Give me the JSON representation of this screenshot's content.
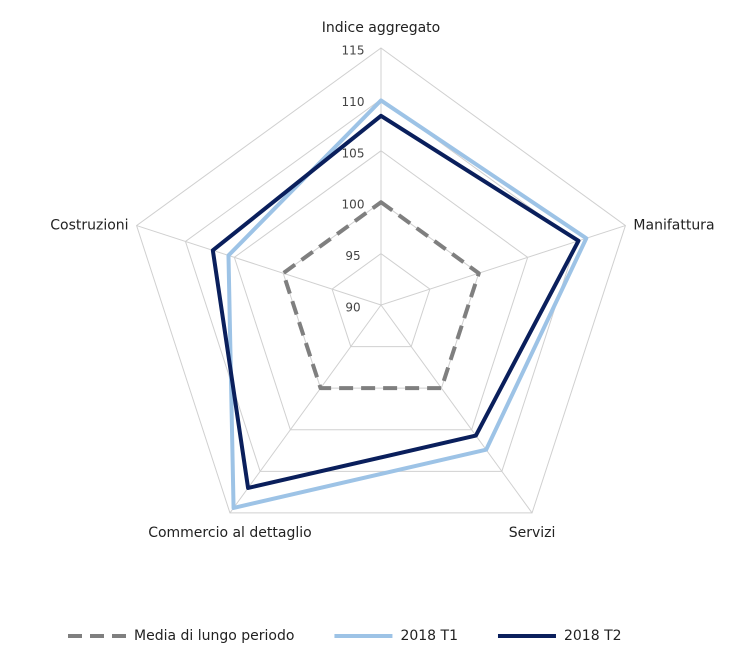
{
  "chart_data": {
    "type": "radar",
    "categories": [
      "Indice aggregato",
      "Manifattura",
      "Servizi",
      "Commercio al dettaglio",
      "Costruzioni"
    ],
    "rlim": [
      90,
      115
    ],
    "rticks": [
      90,
      95,
      100,
      105,
      110,
      115
    ],
    "grid": true,
    "legend": "bottom",
    "series": [
      {
        "name": "Media di lungo periodo",
        "color": "#7f7f7f",
        "dashed": true,
        "values": [
          100,
          100,
          100,
          100,
          100
        ]
      },
      {
        "name": "2018 T1",
        "color": "#9dc3e6",
        "values": [
          109.9,
          111,
          107.4,
          114.4,
          105.6
        ]
      },
      {
        "name": "2018 T2",
        "color": "#0a1f5c",
        "values": [
          108.4,
          110.2,
          105.7,
          112,
          107.2
        ]
      }
    ]
  }
}
